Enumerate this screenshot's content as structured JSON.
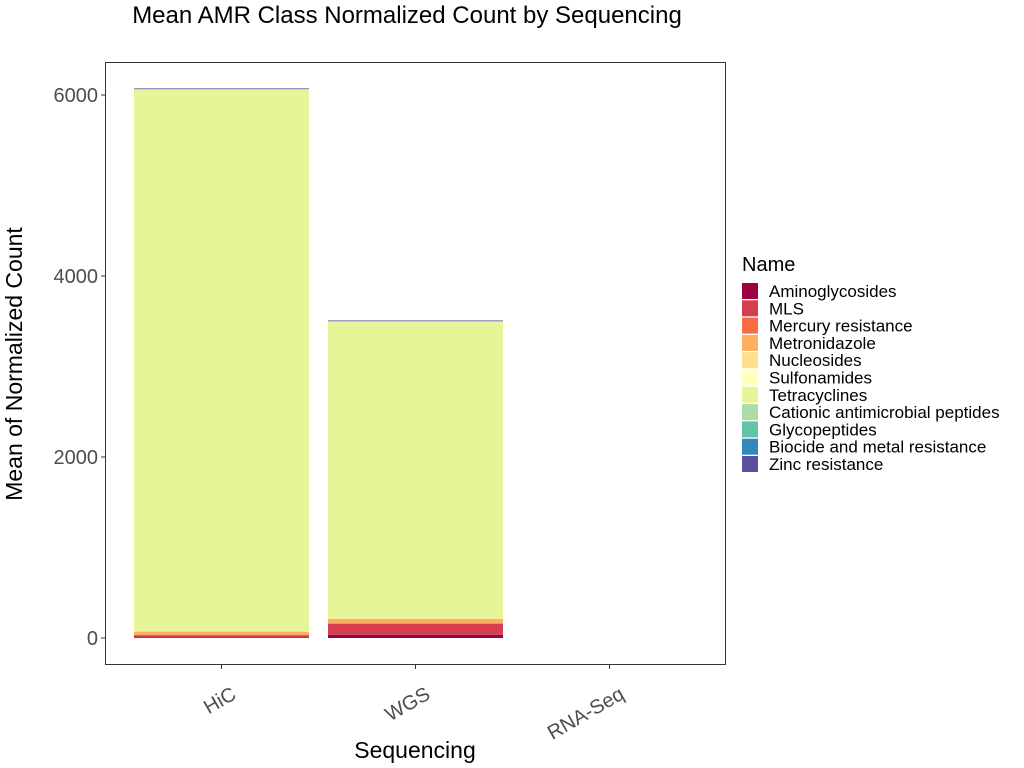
{
  "chart_data": {
    "type": "bar",
    "stacked": true,
    "title": "Mean AMR Class Normalized Count by Sequencing",
    "xlabel": "Sequencing",
    "ylabel": "Mean of Normalized Count",
    "categories": [
      "HiC",
      "WGS",
      "RNA-Seq"
    ],
    "ylim": [
      0,
      6350
    ],
    "yticks": [
      0,
      2000,
      4000,
      6000
    ],
    "grid": false,
    "legend": {
      "title": "Name",
      "placement": "right"
    },
    "series": [
      {
        "name": "Aminoglycosides",
        "color": "#9E0142",
        "values": [
          8,
          35,
          0
        ]
      },
      {
        "name": "MLS",
        "color": "#D53E4F",
        "values": [
          22,
          120,
          0
        ]
      },
      {
        "name": "Mercury resistance",
        "color": "#F46D43",
        "values": [
          3,
          6,
          0
        ]
      },
      {
        "name": "Metronidazole",
        "color": "#FDAE61",
        "values": [
          42,
          55,
          0
        ]
      },
      {
        "name": "Nucleosides",
        "color": "#FEE08B",
        "values": [
          2,
          2,
          0
        ]
      },
      {
        "name": "Sulfonamides",
        "color": "#FFFFBF",
        "values": [
          2,
          2,
          0
        ]
      },
      {
        "name": "Tetracyclines",
        "color": "#E6F598",
        "values": [
          5990,
          3285,
          0
        ]
      },
      {
        "name": "Cationic antimicrobial peptides",
        "color": "#ABDDA4",
        "values": [
          1,
          1,
          0
        ]
      },
      {
        "name": "Glycopeptides",
        "color": "#66C2A5",
        "values": [
          1,
          1,
          0
        ]
      },
      {
        "name": "Biocide and metal resistance",
        "color": "#3288BD",
        "values": [
          1,
          1,
          0
        ]
      },
      {
        "name": "Zinc resistance",
        "color": "#5E4FA2",
        "values": [
          1,
          1,
          0
        ]
      }
    ]
  }
}
